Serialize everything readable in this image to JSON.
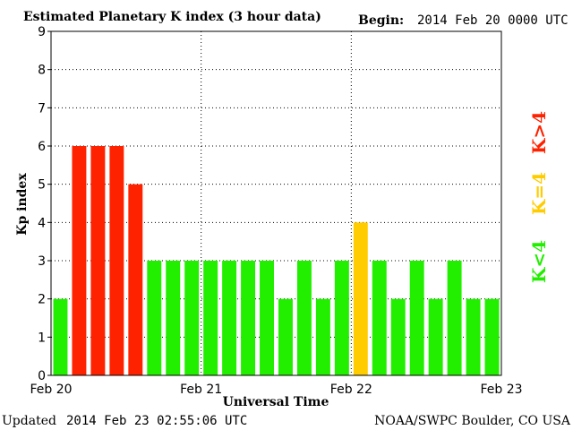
{
  "header": {
    "title": "Estimated Planetary K index (3 hour data)",
    "begin_label": "Begin:",
    "begin_value": "2014 Feb 20 0000 UTC"
  },
  "footer": {
    "updated_label": "Updated",
    "updated_value": "2014 Feb 23 02:55:06 UTC",
    "credit": "NOAA/SWPC Boulder, CO USA"
  },
  "legend": {
    "high": "K>4",
    "mid": "K=4",
    "low": "K<4"
  },
  "colors": {
    "high": "#ff2200",
    "mid": "#ffcc00",
    "low": "#22ee00",
    "legend_high": "#ff2200",
    "legend_mid": "#ffcc00",
    "legend_low": "#22ee00"
  },
  "chart_data": {
    "type": "bar",
    "title": "Estimated Planetary K index (3 hour data)",
    "xlabel": "Universal Time",
    "ylabel": "Kp index",
    "ylim": [
      0,
      9
    ],
    "yticks": [
      "0",
      "1",
      "2",
      "3",
      "4",
      "5",
      "6",
      "7",
      "8",
      "9"
    ],
    "xtick_labels": [
      "Feb 20",
      "Feb 21",
      "Feb 22",
      "Feb 23"
    ],
    "bar_interval_hours": 3,
    "values": [
      2,
      6,
      6,
      6,
      5,
      3,
      3,
      3,
      3,
      3,
      3,
      3,
      2,
      3,
      2,
      3,
      4,
      3,
      2,
      3,
      2,
      3,
      2,
      2
    ],
    "grid": true
  }
}
